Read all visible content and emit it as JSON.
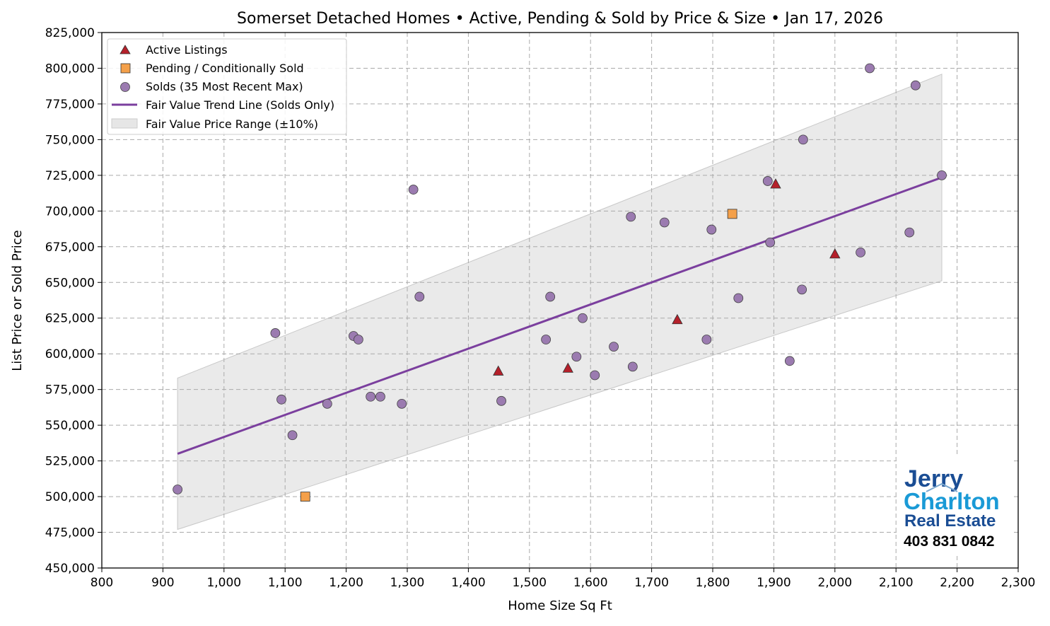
{
  "chart_data": {
    "type": "scatter",
    "title": "Somerset Detached Homes • Active, Pending & Sold by Price & Size • Jan 17, 2026",
    "xlabel": "Home Size Sq Ft",
    "ylabel": "List Price or Sold Price",
    "xlim": [
      800,
      2300
    ],
    "ylim": [
      450000,
      825000
    ],
    "grid": true,
    "legend_placement": "top-left",
    "xticks": [
      800,
      900,
      1000,
      1100,
      1200,
      1300,
      1400,
      1500,
      1600,
      1700,
      1800,
      1900,
      2000,
      2100,
      2200,
      2300
    ],
    "xtick_labels": [
      "800",
      "900",
      "1,000",
      "1,100",
      "1,200",
      "1,300",
      "1,400",
      "1,500",
      "1,600",
      "1,700",
      "1,800",
      "1,900",
      "2,000",
      "2,100",
      "2,200",
      "2,300"
    ],
    "yticks": [
      450000,
      475000,
      500000,
      525000,
      550000,
      575000,
      600000,
      625000,
      650000,
      675000,
      700000,
      725000,
      750000,
      775000,
      800000,
      825000
    ],
    "ytick_labels": [
      "450,000",
      "475,000",
      "500,000",
      "525,000",
      "550,000",
      "575,000",
      "600,000",
      "625,000",
      "650,000",
      "675,000",
      "700,000",
      "725,000",
      "750,000",
      "775,000",
      "800,000",
      "825,000"
    ],
    "series": [
      {
        "name": "Active Listings",
        "marker": "triangle",
        "color": "#b5202a",
        "points": [
          [
            1449,
            588000
          ],
          [
            1563,
            590000
          ],
          [
            1742,
            624000
          ],
          [
            1903,
            719000
          ],
          [
            2000,
            670000
          ]
        ]
      },
      {
        "name": "Pending / Conditionally Sold",
        "marker": "square",
        "color": "#f4a04a",
        "points": [
          [
            1133,
            500000
          ],
          [
            1832,
            698000
          ]
        ]
      },
      {
        "name": "Solds (35 Most Recent Max)",
        "marker": "circle",
        "color": "#9b7bb0",
        "points": [
          [
            924,
            505000
          ],
          [
            1084,
            614500
          ],
          [
            1094,
            568000
          ],
          [
            1112,
            543000
          ],
          [
            1169,
            565000
          ],
          [
            1212,
            612500
          ],
          [
            1220,
            610000
          ],
          [
            1240,
            570000
          ],
          [
            1256,
            570000
          ],
          [
            1291,
            565000
          ],
          [
            1310,
            715000
          ],
          [
            1320,
            640000
          ],
          [
            1454,
            567000
          ],
          [
            1527,
            610000
          ],
          [
            1534,
            640000
          ],
          [
            1577,
            598000
          ],
          [
            1587,
            625000
          ],
          [
            1607,
            585000
          ],
          [
            1638,
            605000
          ],
          [
            1666,
            696000
          ],
          [
            1669,
            591000
          ],
          [
            1721,
            692000
          ],
          [
            1790,
            610000
          ],
          [
            1798,
            687000
          ],
          [
            1842,
            639000
          ],
          [
            1890,
            721000
          ],
          [
            1894,
            678000
          ],
          [
            1926,
            595000
          ],
          [
            1946,
            645000
          ],
          [
            1948,
            750000
          ],
          [
            2042,
            671000
          ],
          [
            2057,
            800000
          ],
          [
            2122,
            685000
          ],
          [
            2132,
            788000
          ],
          [
            2175,
            725000
          ]
        ]
      }
    ],
    "trend_line": {
      "name": "Fair Value Trend Line (Solds Only)",
      "color": "#7b3f9e",
      "x": [
        924,
        2175
      ],
      "y": [
        530000,
        723500
      ]
    },
    "range_band": {
      "name": "Fair Value Price Range (±10%)",
      "color": "#d9d9d9",
      "pct": 10
    }
  },
  "logo": {
    "line1": "Jerry",
    "line2": "Charlton",
    "line3": "Real Estate",
    "phone": "403 831 0842"
  }
}
